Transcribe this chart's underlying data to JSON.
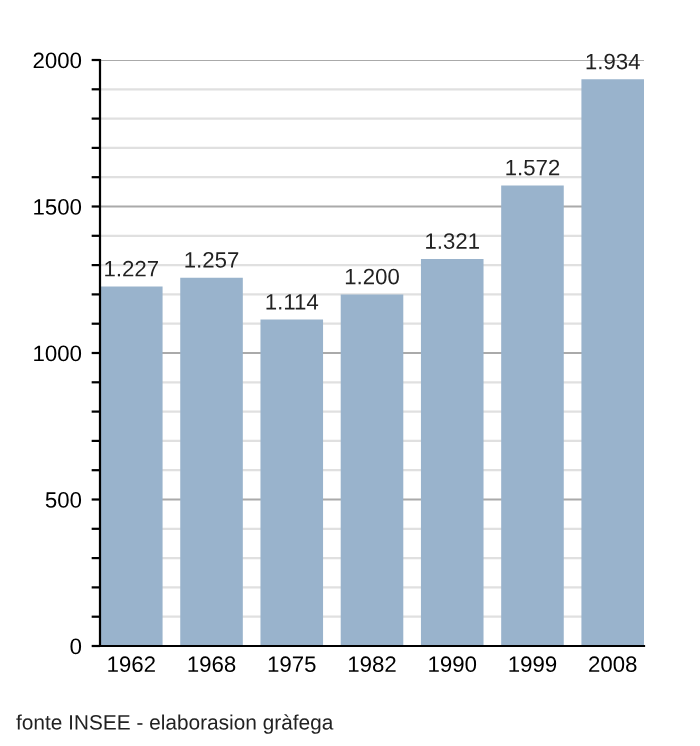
{
  "chart_data": {
    "type": "bar",
    "categories": [
      "1962",
      "1968",
      "1975",
      "1982",
      "1990",
      "1999",
      "2008"
    ],
    "values": [
      1227,
      1257,
      1114,
      1200,
      1321,
      1572,
      1934
    ],
    "value_labels": [
      "1.227",
      "1.257",
      "1.114",
      "1.200",
      "1.321",
      "1.572",
      "1.934"
    ],
    "color": "#99b3cc",
    "ylim": [
      0,
      2000
    ],
    "yticks": [
      0,
      {
        "value": 100,
        "label": null
      },
      {
        "value": 200,
        "label": null
      },
      {
        "value": 300,
        "label": null
      },
      {
        "value": 400,
        "label": null
      },
      500,
      {
        "value": 600,
        "label": null
      },
      {
        "value": 700,
        "label": null
      },
      {
        "value": 800,
        "label": null
      },
      {
        "value": 900,
        "label": null
      },
      1000,
      {
        "value": 1100,
        "label": null
      },
      {
        "value": 1200,
        "label": null
      },
      {
        "value": 1300,
        "label": null
      },
      {
        "value": 1400,
        "label": null
      },
      1500,
      {
        "value": 1600,
        "label": null
      },
      {
        "value": 1700,
        "label": null
      },
      {
        "value": 1800,
        "label": null
      },
      {
        "value": 1900,
        "label": null
      },
      2000
    ],
    "grid": "y",
    "legend": false,
    "annotations": [
      "fonte INSEE - elaborasion gràfega"
    ]
  }
}
